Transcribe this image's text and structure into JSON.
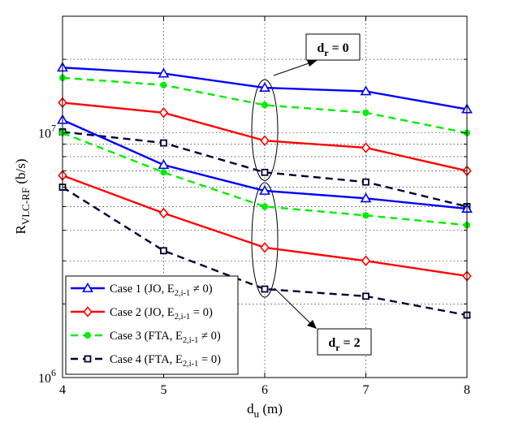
{
  "chart_data": {
    "type": "line",
    "title": "",
    "xlabel": {
      "main": "d",
      "sub": "u",
      "suffix": " (m)"
    },
    "ylabel": {
      "main": "R",
      "sub": "VLC-RF",
      "suffix": " (b/s)"
    },
    "x": [
      4,
      5,
      6,
      7,
      8
    ],
    "xlim": [
      4,
      8
    ],
    "xticks": [
      "4",
      "5",
      "6",
      "7",
      "8"
    ],
    "ylim": [
      1000000,
      30000000
    ],
    "yscale": "log",
    "yticks": [
      {
        "value": 1000000,
        "base": "10",
        "exp": "6"
      },
      {
        "value": 10000000,
        "base": "10",
        "exp": "7"
      }
    ],
    "grid": true,
    "legend_position": "bottom-left",
    "series": [
      {
        "name": "Case 1 (JO, E2,i-1 ≠ 0) dr=0",
        "legend": false,
        "color": "#0000ff",
        "dash": "solid",
        "marker": "triangle",
        "values": [
          18500000,
          17500000,
          15300000,
          14800000,
          12500000
        ]
      },
      {
        "name": "Case 3 (FTA, E2,i-1 ≠ 0) dr=0",
        "legend": false,
        "color": "#00ee00",
        "dash": "dash",
        "marker": "circle",
        "values": [
          16800000,
          15700000,
          13000000,
          12100000,
          10000000
        ]
      },
      {
        "name": "Case 2 (JO, E2,i-1 = 0) dr=0",
        "legend": false,
        "color": "#ff0000",
        "dash": "solid",
        "marker": "diamond",
        "values": [
          13300000,
          12100000,
          9300000,
          8700000,
          7000000
        ]
      },
      {
        "name": "Case 4 (FTA, E2,i-1 = 0) dr=0",
        "legend": false,
        "color": "#000033",
        "dash": "dash",
        "marker": "square",
        "values": [
          10100000,
          9100000,
          6900000,
          6300000,
          5000000
        ]
      },
      {
        "name": "Case 1 (JO, E2,i-1 ≠ 0) dr=2",
        "legend": true,
        "legend_label": {
          "pre": "Case 1 (JO, E",
          "sub": "2,i-1",
          "post": " ≠ 0)"
        },
        "color": "#0000ff",
        "dash": "solid",
        "marker": "triangle",
        "values": [
          11300000,
          7400000,
          5800000,
          5400000,
          4900000
        ]
      },
      {
        "name": "Case 2 (JO, E2,i-1 = 0) dr=2",
        "legend": true,
        "legend_label": {
          "pre": "Case 2 (JO, E",
          "sub": "2,i-1",
          "post": " = 0)"
        },
        "color": "#ff0000",
        "dash": "solid",
        "marker": "diamond",
        "values": [
          6700000,
          4700000,
          3400000,
          3000000,
          2600000
        ]
      },
      {
        "name": "Case 3 (FTA, E2,i-1 ≠ 0) dr=2",
        "legend": true,
        "legend_label": {
          "pre": "Case 3 (FTA, E",
          "sub": "2,i-1",
          "post": " ≠ 0)"
        },
        "color": "#00ee00",
        "dash": "dash",
        "marker": "circle",
        "values": [
          10000000,
          6900000,
          5000000,
          4600000,
          4200000
        ]
      },
      {
        "name": "Case 4 (FTA, E2,i-1 = 0) dr=2",
        "legend": true,
        "legend_label": {
          "pre": "Case 4 (FTA, E",
          "sub": "2,i-1",
          "post": " = 0)"
        },
        "color": "#000033",
        "dash": "dash",
        "marker": "square",
        "values": [
          6000000,
          3300000,
          2300000,
          2150000,
          1800000
        ]
      }
    ],
    "annotations": [
      {
        "main": "d",
        "sub": "r",
        "suffix": " = 0",
        "at_x": 6,
        "group": "upper",
        "placement": "above"
      },
      {
        "main": "d",
        "sub": "r",
        "suffix": " = 2",
        "at_x": 6,
        "group": "lower",
        "placement": "below"
      }
    ]
  }
}
